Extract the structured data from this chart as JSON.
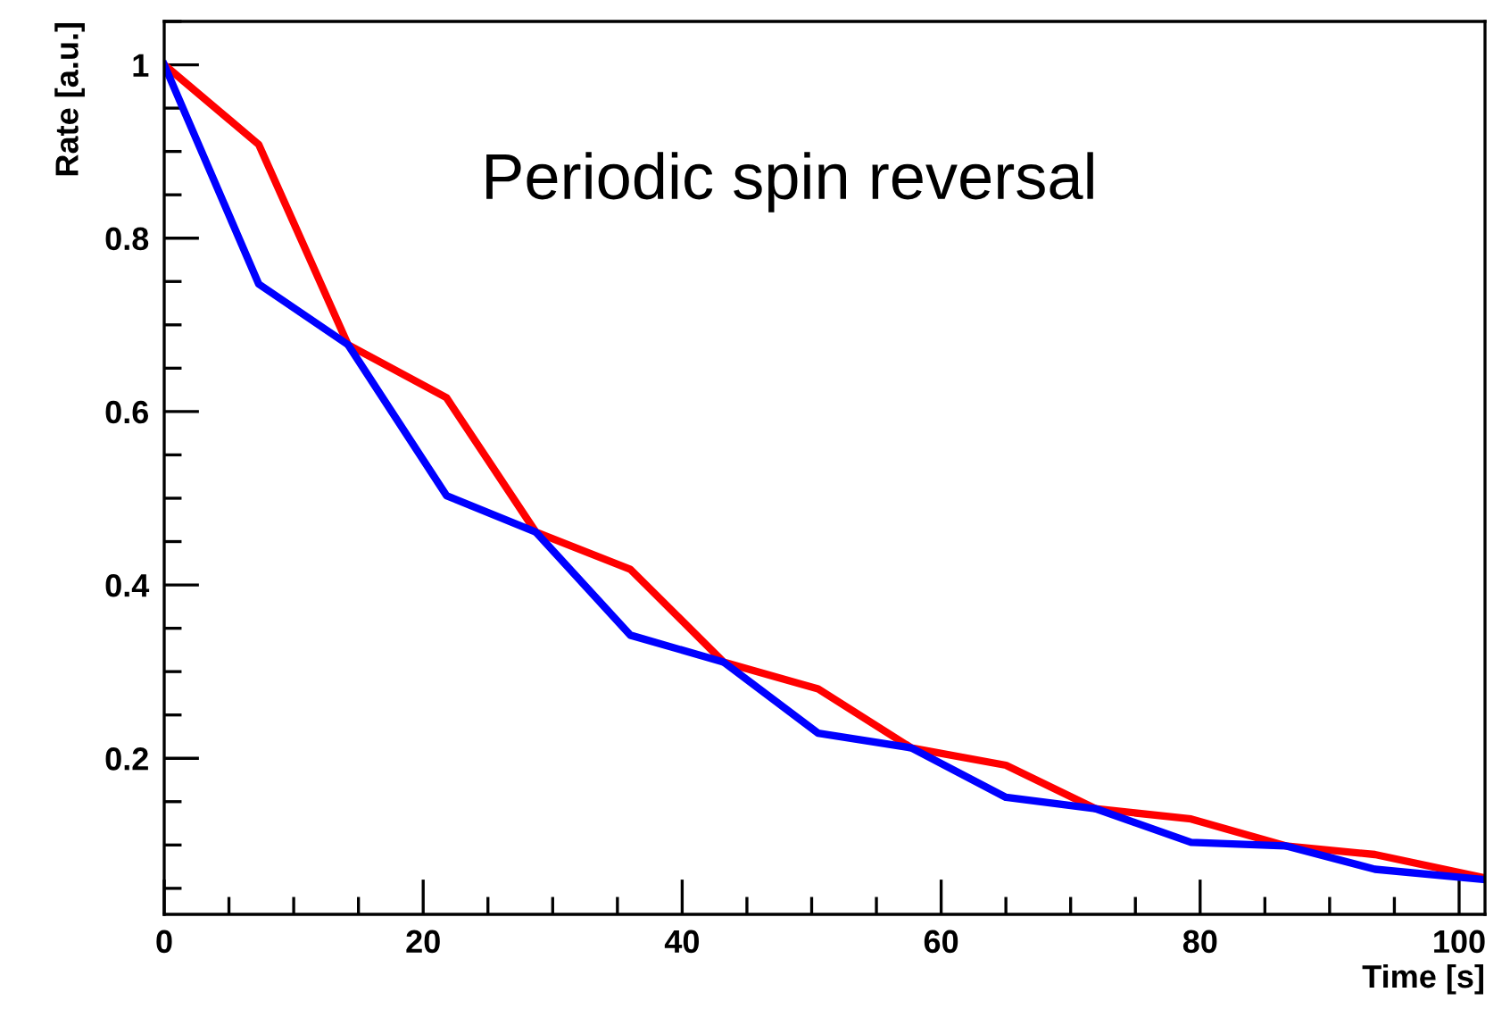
{
  "chart_data": {
    "type": "line",
    "xlabel": "Time [s]",
    "ylabel": "Rate [a.u.]",
    "annotations": [
      "Periodic spin reversal"
    ],
    "xlim": [
      0,
      102
    ],
    "ylim": [
      0.02,
      1.05
    ],
    "xticks": [
      0,
      20,
      40,
      60,
      80,
      100
    ],
    "yticks": [
      0.2,
      0.4,
      0.6,
      0.8,
      1
    ],
    "grid": false,
    "legend": false,
    "marker": "none",
    "line_style": "solid",
    "series": [
      {
        "color": "#ff0000",
        "x": [
          0,
          7.3,
          14.2,
          21.8,
          28.7,
          36,
          43.2,
          50.5,
          57.7,
          65,
          71.9,
          79.3,
          86.6,
          93.5,
          102
        ],
        "values": [
          1.0,
          0.908,
          0.677,
          0.616,
          0.461,
          0.418,
          0.311,
          0.28,
          0.212,
          0.192,
          0.142,
          0.13,
          0.099,
          0.089,
          0.062
        ]
      },
      {
        "color": "#0000ff",
        "x": [
          0,
          7.3,
          14.2,
          21.8,
          28.7,
          36,
          43.2,
          50.5,
          57.7,
          65,
          71.9,
          79.3,
          86.6,
          93.5,
          102
        ],
        "values": [
          1.0,
          0.747,
          0.677,
          0.503,
          0.461,
          0.342,
          0.311,
          0.229,
          0.212,
          0.155,
          0.142,
          0.103,
          0.099,
          0.072,
          0.06
        ]
      }
    ]
  }
}
